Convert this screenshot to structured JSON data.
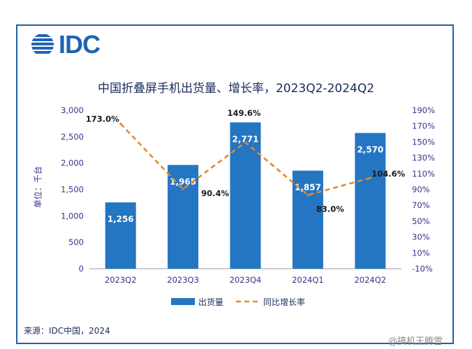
{
  "logo": {
    "text": "IDC"
  },
  "chart_data": {
    "type": "bar",
    "title": "中国折叠屏手机出货量、增长率，2023Q2-2024Q2",
    "ylabel": "单位：千台",
    "categories": [
      "2023Q2",
      "2023Q3",
      "2023Q4",
      "2024Q1",
      "2024Q2"
    ],
    "series": [
      {
        "name": "出货量",
        "type": "bar",
        "axis": "left",
        "values": [
          1256,
          1965,
          2771,
          1857,
          2570
        ],
        "labels": [
          "1,256",
          "1,965",
          "2,771",
          "1,857",
          "2,570"
        ]
      },
      {
        "name": "同比增长率",
        "type": "line",
        "axis": "right",
        "values": [
          173.0,
          90.4,
          149.6,
          83.0,
          104.6
        ],
        "labels": [
          "173.0%",
          "90.4%",
          "149.6%",
          "83.0%",
          "104.6%"
        ]
      }
    ],
    "left_axis": {
      "ylim": [
        0,
        3000
      ],
      "ticks": [
        "0",
        "500",
        "1,000",
        "1,500",
        "2,000",
        "2,500",
        "3,000"
      ]
    },
    "right_axis": {
      "ylim": [
        -10,
        190
      ],
      "ticks": [
        "-10%",
        "10%",
        "30%",
        "50%",
        "70%",
        "90%",
        "110%",
        "130%",
        "150%",
        "170%",
        "190%"
      ]
    },
    "colors": {
      "bar": "#2475c2",
      "line": "#e08a2e",
      "bar_label": "#ffffff"
    },
    "legend_position": "bottom"
  },
  "source": "来源：IDC中国，2024",
  "watermark": "@搞机王腾雪"
}
